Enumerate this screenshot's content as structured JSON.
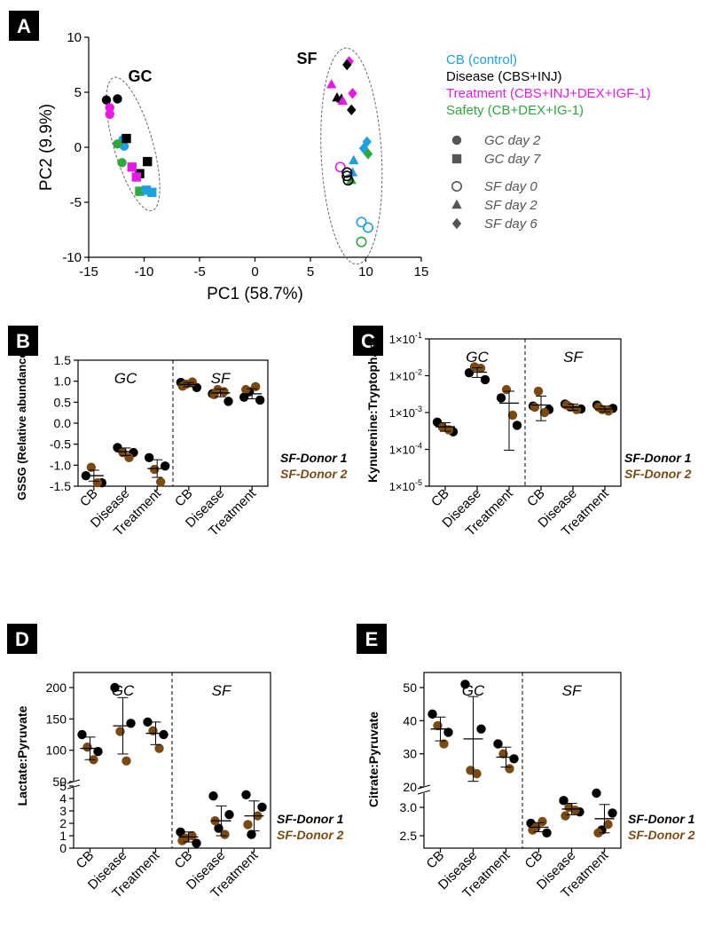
{
  "colors": {
    "cb": "#1ba1e2",
    "disease": "#000000",
    "treatment": "#e51be5",
    "safety": "#2ea73c",
    "donor1": "#000000",
    "donor2": "#7b4a12",
    "legend_gray": "#555555"
  },
  "panel_labels": [
    "A",
    "B",
    "C",
    "D",
    "E"
  ],
  "donor_legend": {
    "donor1": "SF-Donor 1",
    "donor2": "SF-Donor 2"
  },
  "chart_data": [
    {
      "panel": "A",
      "type": "scatter",
      "title": "",
      "xlabel": "PC1 (58.7%)",
      "ylabel": "PC2 (9.9%)",
      "xlim": [
        -15,
        15
      ],
      "ylim": [
        -10,
        10
      ],
      "xticks": [
        "-15",
        "-10",
        "-5",
        "0",
        "5",
        "10",
        "15"
      ],
      "yticks": [
        "10",
        "5",
        "0",
        "-5",
        "-10"
      ],
      "cluster_labels": [
        "GC",
        "SF"
      ],
      "legend_groups": [
        {
          "label": "CB (control)",
          "key": "cb"
        },
        {
          "label": "Disease (CBS+INJ)",
          "key": "disease"
        },
        {
          "label": "Treatment (CBS+INJ+DEX+IGF-1)",
          "key": "treatment"
        },
        {
          "label": "Safety (CB+DEX+IG-1)",
          "key": "safety"
        }
      ],
      "legend_markers": [
        {
          "label": "GC day 2",
          "marker": "circle"
        },
        {
          "label": "GC day 7",
          "marker": "square"
        },
        {
          "label": "SF day 0",
          "marker": "open"
        },
        {
          "label": "SF day 2",
          "marker": "triangle"
        },
        {
          "label": "SF day 6",
          "marker": "diamond"
        }
      ],
      "points": [
        {
          "x": -13.4,
          "y": 4.3,
          "g": "disease",
          "m": "circle"
        },
        {
          "x": -12.4,
          "y": 4.4,
          "g": "disease",
          "m": "circle"
        },
        {
          "x": -13.1,
          "y": 3.6,
          "g": "treatment",
          "m": "circle"
        },
        {
          "x": -13.1,
          "y": 3.0,
          "g": "treatment",
          "m": "circle"
        },
        {
          "x": -11.9,
          "y": 0.7,
          "g": "cb",
          "m": "circle"
        },
        {
          "x": -11.8,
          "y": 0.1,
          "g": "cb",
          "m": "circle"
        },
        {
          "x": -12.4,
          "y": 0.3,
          "g": "safety",
          "m": "circle"
        },
        {
          "x": -12.0,
          "y": -1.4,
          "g": "safety",
          "m": "circle"
        },
        {
          "x": -11.6,
          "y": 0.8,
          "g": "disease",
          "m": "square"
        },
        {
          "x": -9.7,
          "y": -1.3,
          "g": "disease",
          "m": "square"
        },
        {
          "x": -10.4,
          "y": -2.4,
          "g": "disease",
          "m": "square"
        },
        {
          "x": -11.1,
          "y": -1.8,
          "g": "treatment",
          "m": "square"
        },
        {
          "x": -10.7,
          "y": -2.7,
          "g": "treatment",
          "m": "square"
        },
        {
          "x": -10.4,
          "y": -4.0,
          "g": "safety",
          "m": "square"
        },
        {
          "x": -9.8,
          "y": -3.9,
          "g": "cb",
          "m": "square"
        },
        {
          "x": -9.3,
          "y": -4.1,
          "g": "cb",
          "m": "square"
        },
        {
          "x": 8.5,
          "y": 7.8,
          "g": "treatment",
          "m": "diamond"
        },
        {
          "x": 8.3,
          "y": 7.5,
          "g": "disease",
          "m": "diamond"
        },
        {
          "x": 6.9,
          "y": 5.7,
          "g": "treatment",
          "m": "triangle"
        },
        {
          "x": 7.4,
          "y": 4.5,
          "g": "disease",
          "m": "triangle"
        },
        {
          "x": 7.8,
          "y": 4.4,
          "g": "disease",
          "m": "triangle"
        },
        {
          "x": 7.9,
          "y": 4.2,
          "g": "treatment",
          "m": "triangle"
        },
        {
          "x": 8.8,
          "y": 4.9,
          "g": "treatment",
          "m": "diamond"
        },
        {
          "x": 8.7,
          "y": 3.4,
          "g": "disease",
          "m": "diamond"
        },
        {
          "x": 10.1,
          "y": 0.5,
          "g": "cb",
          "m": "diamond"
        },
        {
          "x": 9.8,
          "y": -0.1,
          "g": "cb",
          "m": "diamond"
        },
        {
          "x": 10.2,
          "y": -0.6,
          "g": "safety",
          "m": "diamond"
        },
        {
          "x": 8.9,
          "y": -1.2,
          "g": "cb",
          "m": "triangle"
        },
        {
          "x": 8.8,
          "y": -2.3,
          "g": "cb",
          "m": "triangle"
        },
        {
          "x": 8.7,
          "y": -3.0,
          "g": "safety",
          "m": "triangle"
        },
        {
          "x": 7.7,
          "y": -1.8,
          "g": "treatment",
          "m": "open"
        },
        {
          "x": 8.3,
          "y": -2.3,
          "g": "disease",
          "m": "open"
        },
        {
          "x": 8.3,
          "y": -2.6,
          "g": "disease",
          "m": "open"
        },
        {
          "x": 8.4,
          "y": -3.0,
          "g": "disease",
          "m": "open"
        },
        {
          "x": 9.6,
          "y": -6.8,
          "g": "cb",
          "m": "open"
        },
        {
          "x": 10.2,
          "y": -7.3,
          "g": "cb",
          "m": "open"
        },
        {
          "x": 9.6,
          "y": -8.6,
          "g": "safety",
          "m": "open"
        }
      ]
    },
    {
      "panel": "B",
      "type": "scatter",
      "scale": "linear",
      "ylabel": "GSSG (Relative abundance)",
      "ylim": [
        -1.5,
        1.5
      ],
      "yticks": [
        "1.5",
        "1.0",
        "0.5",
        "0.0",
        "-0.5",
        "-1.0",
        "-1.5"
      ],
      "sections": [
        "GC",
        "SF"
      ],
      "categories": [
        "CB",
        "Disease",
        "Treatment",
        "CB",
        "Disease",
        "Treatment"
      ],
      "groups": [
        {
          "d1": [
            -1.25,
            -1.42
          ],
          "d2": [
            -1.05,
            -1.42
          ],
          "mean": -1.25,
          "sd": 0.13
        },
        {
          "d1": [
            -0.58,
            -0.7
          ],
          "d2": [
            -0.7,
            -0.82
          ],
          "mean": -0.68,
          "sd": 0.09
        },
        {
          "d1": [
            -0.82,
            -1.02
          ],
          "d2": [
            -1.1,
            -1.4
          ],
          "mean": -1.08,
          "sd": 0.21
        },
        {
          "d1": [
            0.97,
            0.85
          ],
          "d2": [
            0.93,
            0.98,
            0.88
          ],
          "mean": 0.92,
          "sd": 0.05
        },
        {
          "d1": [
            0.7,
            0.52
          ],
          "d2": [
            0.8,
            0.75,
            0.68
          ],
          "mean": 0.72,
          "sd": 0.09
        },
        {
          "d1": [
            0.62,
            0.55,
            0.75
          ],
          "d2": [
            0.87,
            0.8
          ],
          "mean": 0.7,
          "sd": 0.12
        }
      ]
    },
    {
      "panel": "C",
      "type": "scatter",
      "scale": "log",
      "ylabel": "Kynurenine:Tryptophan",
      "ylim_log10": [
        -5,
        -1
      ],
      "yticks": [
        {
          "base": "1×10",
          "exp": "-1"
        },
        {
          "base": "1×10",
          "exp": "-2"
        },
        {
          "base": "1×10",
          "exp": "-3"
        },
        {
          "base": "1×10",
          "exp": "-4"
        },
        {
          "base": "1×10",
          "exp": "-5"
        }
      ],
      "sections": [
        "GC",
        "SF"
      ],
      "categories": [
        "CB",
        "Disease",
        "Treatment",
        "CB",
        "Disease",
        "Treatment"
      ],
      "groups": [
        {
          "d1": [
            0.00055,
            0.0003
          ],
          "d2": [
            0.0004,
            0.00034
          ],
          "mean": 0.00041,
          "up": 0.00053,
          "lo": 0.00031
        },
        {
          "d1": [
            0.012,
            0.0078
          ],
          "d2": [
            0.0175,
            0.016
          ],
          "mean": 0.0125,
          "up": 0.0165,
          "lo": 0.009
        },
        {
          "d1": [
            0.0025,
            0.00045
          ],
          "d2": [
            0.0042,
            0.00085
          ],
          "mean": 0.0018,
          "up": 0.0038,
          "lo": 9.5e-05
        },
        {
          "d1": [
            0.0015,
            0.0012
          ],
          "d2": [
            0.0038,
            0.001,
            0.0014
          ],
          "mean": 0.0016,
          "up": 0.0028,
          "lo": 0.0006
        },
        {
          "d1": [
            0.0017,
            0.00125
          ],
          "d2": [
            0.0014,
            0.0012,
            0.0016
          ],
          "mean": 0.0014,
          "up": 0.0017,
          "lo": 0.00115
        },
        {
          "d1": [
            0.0016,
            0.0013
          ],
          "d2": [
            0.0012,
            0.0011,
            0.0014
          ],
          "mean": 0.00125,
          "up": 0.0015,
          "lo": 0.00105
        }
      ]
    },
    {
      "panel": "D",
      "type": "scatter",
      "scale": "broken",
      "ylabel": "Lactate:Pyruvate",
      "upper_range": [
        50,
        200
      ],
      "lower_range": [
        0,
        5
      ],
      "upper_ticks": [
        "200",
        "150",
        "100",
        "50"
      ],
      "lower_ticks": [
        "5",
        "4",
        "3",
        "2",
        "1",
        "0"
      ],
      "sections": [
        "GC",
        "SF"
      ],
      "categories": [
        "CB",
        "Disease",
        "Treatment",
        "CB",
        "Disease",
        "Treatment"
      ],
      "groups": [
        {
          "d1": [
            125,
            98
          ],
          "d2": [
            105,
            85
          ],
          "mean": 103,
          "sd": 18
        },
        {
          "d1": [
            200,
            143
          ],
          "d2": [
            130,
            83
          ],
          "mean": 139,
          "sd": 45
        },
        {
          "d1": [
            145,
            125
          ],
          "d2": [
            131,
            103
          ],
          "mean": 127,
          "sd": 18
        },
        {
          "d1": [
            1.3,
            0.4
          ],
          "d2": [
            0.8,
            1.0,
            0.6
          ],
          "mean": 0.9,
          "sd": 0.4
        },
        {
          "d1": [
            4.2,
            2.7,
            1.6
          ],
          "d2": [
            1.1,
            2.2
          ],
          "mean": 2.2,
          "sd": 1.2
        },
        {
          "d1": [
            4.3,
            3.3,
            1.1
          ],
          "d2": [
            2.6,
            1.9
          ],
          "mean": 2.6,
          "sd": 1.2
        }
      ]
    },
    {
      "panel": "E",
      "type": "scatter",
      "scale": "broken",
      "ylabel": "Citrate:Pyruvate",
      "upper_range": [
        20,
        50
      ],
      "lower_range": [
        2.5,
        3.0
      ],
      "upper_ticks": [
        "50",
        "40",
        "30",
        "20"
      ],
      "lower_ticks": [
        "3.0",
        "2.5"
      ],
      "sections": [
        "GC",
        "SF"
      ],
      "categories": [
        "CB",
        "Disease",
        "Treatment",
        "CB",
        "Disease",
        "Treatment"
      ],
      "groups": [
        {
          "d1": [
            42.0,
            36.5
          ],
          "d2": [
            38.5,
            33.0
          ],
          "mean": 37.5,
          "sd": 3.6
        },
        {
          "d1": [
            51.0,
            37.5
          ],
          "d2": [
            25.0,
            24.0
          ],
          "mean": 34.5,
          "sd": 12.8
        },
        {
          "d1": [
            33.0,
            28.5
          ],
          "d2": [
            30.0,
            25.5
          ],
          "mean": 29.0,
          "sd": 3.0
        },
        {
          "d1": [
            2.72,
            2.55
          ],
          "d2": [
            2.65,
            2.75,
            2.6
          ],
          "mean": 2.65,
          "sd": 0.08
        },
        {
          "d1": [
            3.12,
            2.92
          ],
          "d2": [
            3.0,
            2.95,
            2.85
          ],
          "mean": 2.97,
          "sd": 0.1
        },
        {
          "d1": [
            3.25,
            2.9,
            2.6
          ],
          "d2": [
            2.7,
            2.55
          ],
          "mean": 2.8,
          "sd": 0.25
        }
      ]
    }
  ]
}
